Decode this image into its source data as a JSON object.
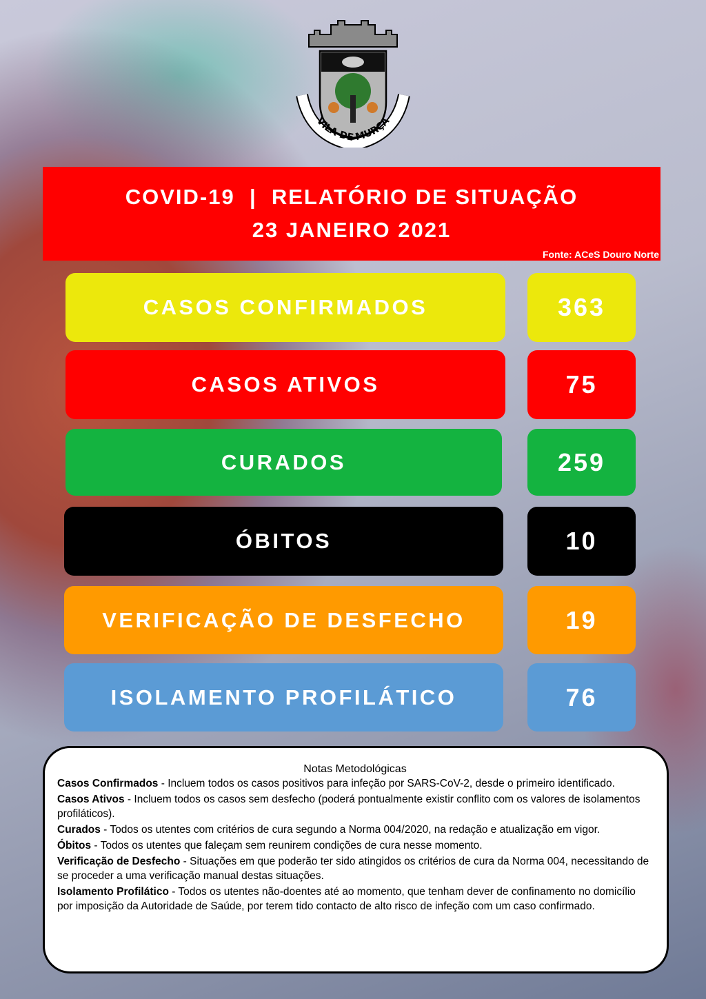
{
  "logo": {
    "text": "VILA DE MURÇA"
  },
  "header": {
    "title": "COVID-19  |  RELATÓRIO DE SITUAÇÃO",
    "date": "23 JANEIRO 2021",
    "source": "Fonte: ACeS Douro Norte"
  },
  "stats": [
    {
      "label": "CASOS CONFIRMADOS",
      "value": "363",
      "color": "#ece80c"
    },
    {
      "label": "CASOS ATIVOS",
      "value": "75",
      "color": "#ff0000"
    },
    {
      "label": "CURADOS",
      "value": "259",
      "color": "#14b340"
    },
    {
      "label": "ÓBITOS",
      "value": "10",
      "color": "#000000"
    },
    {
      "label": "VERIFICAÇÃO DE DESFECHO",
      "value": "19",
      "color": "#ff9a00"
    },
    {
      "label": "ISOLAMENTO PROFILÁTICO",
      "value": "76",
      "color": "#5b9bd5"
    }
  ],
  "notes": {
    "title": "Notas Metodológicas",
    "items": [
      {
        "term": "Casos Confirmados",
        "text": " - Incluem todos os casos positivos para infeção por SARS-CoV-2, desde o primeiro identificado."
      },
      {
        "term": "Casos Ativos",
        "text": " - Incluem todos os casos sem desfecho (poderá pontualmente existir conflito com os valores de isolamentos profiláticos)."
      },
      {
        "term": "Curados",
        "text": " - Todos os utentes com critérios de cura segundo a Norma 004/2020, na redação e atualização em vigor."
      },
      {
        "term": "Óbitos",
        "text": " - Todos os utentes que faleçam sem reunirem condições de cura nesse momento."
      },
      {
        "term": "Verificação de Desfecho",
        "text": " - Situações em que poderão ter sido atingidos os critérios de cura da Norma 004, necessitando de se proceder a uma verificação manual destas situações."
      },
      {
        "term": "Isolamento Profilático",
        "text": " - Todos os utentes não-doentes até ao momento, que tenham dever de confinamento no domicílio por imposição da Autoridade de Saúde, por terem tido contacto de alto risco de infeção com um caso confirmado."
      }
    ]
  }
}
